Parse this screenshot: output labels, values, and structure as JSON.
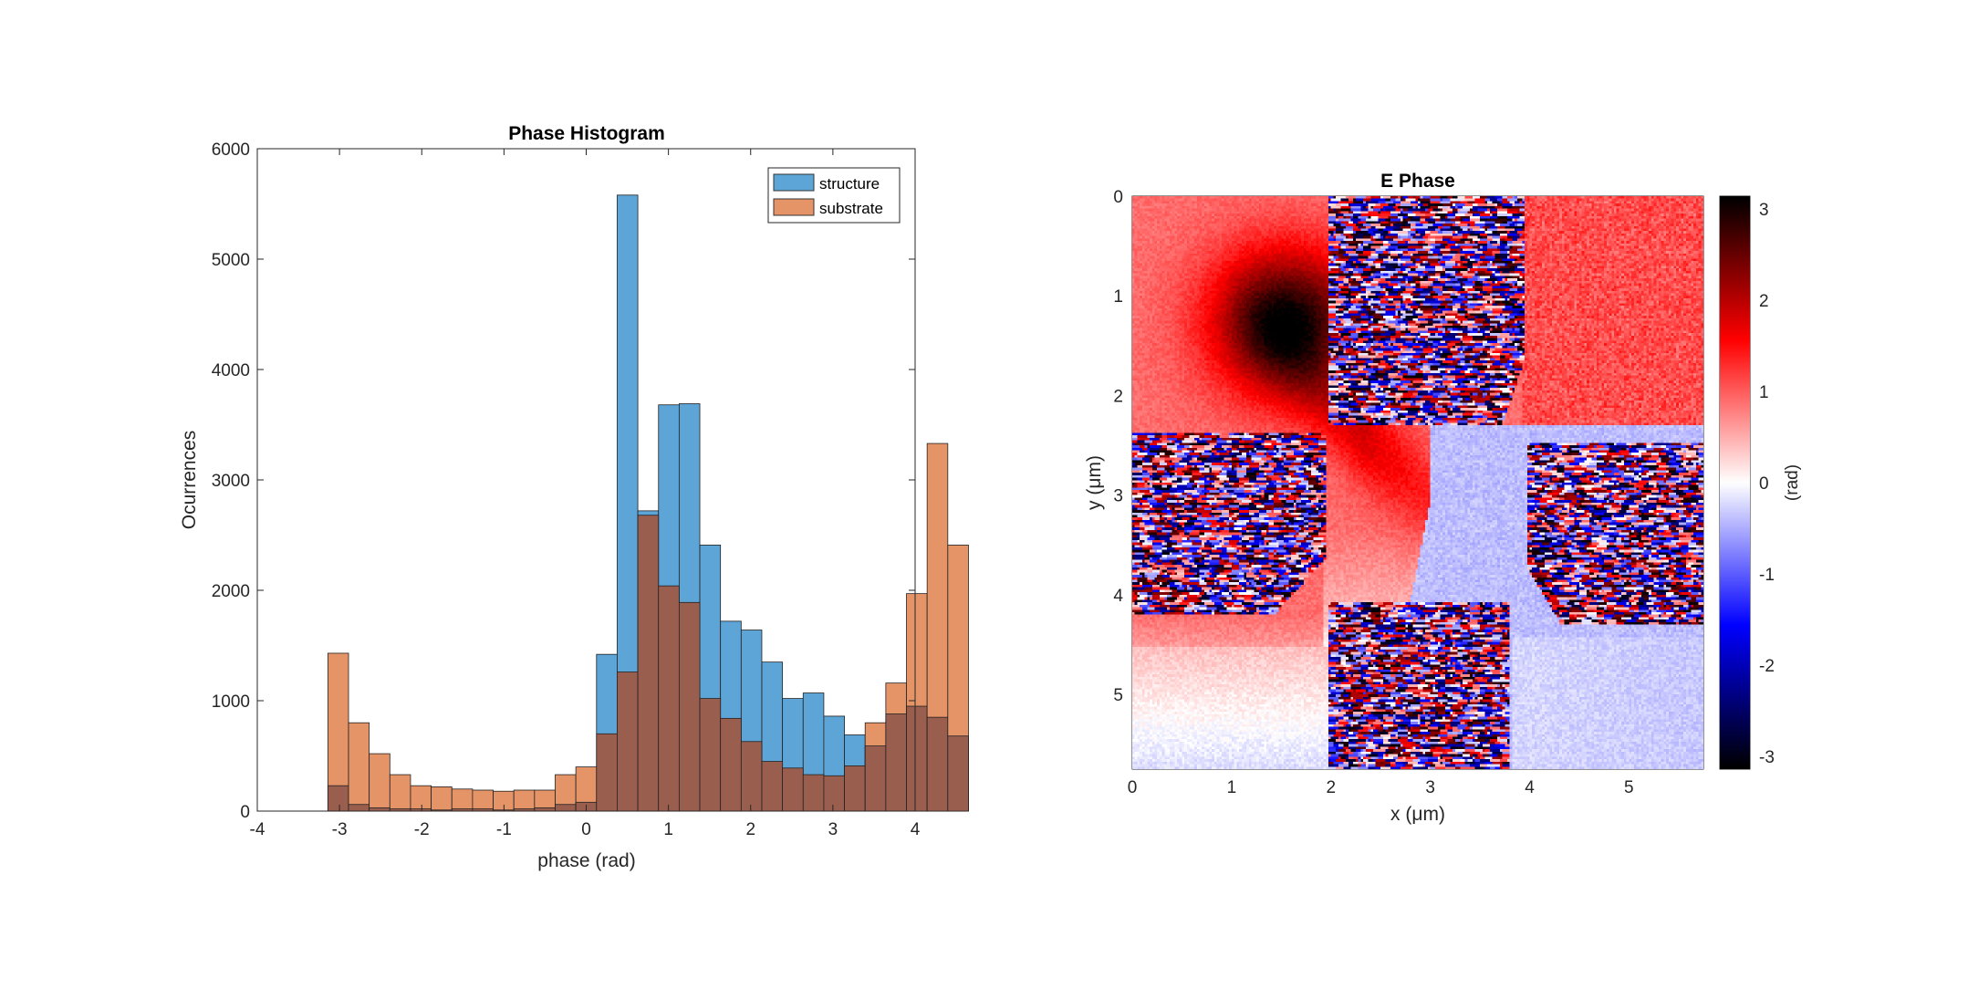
{
  "chart_data": [
    {
      "type": "bar",
      "subtype": "histogram",
      "title": "Phase Histogram",
      "xlabel": "phase (rad)",
      "ylabel": "Ocurrences",
      "xlim": [
        -4,
        4
      ],
      "ylim": [
        0,
        6000
      ],
      "xticks": [
        "-4",
        "-3",
        "-2",
        "-1",
        "0",
        "1",
        "2",
        "3",
        "4"
      ],
      "yticks": [
        "0",
        "1000",
        "2000",
        "3000",
        "4000",
        "5000",
        "6000"
      ],
      "grid": false,
      "legend_position": "top-right",
      "bin_start": -3.1416,
      "bin_width": 0.2513,
      "series": [
        {
          "name": "structure",
          "color": "#5da5d6",
          "values": [
            230,
            60,
            30,
            20,
            20,
            10,
            20,
            20,
            10,
            20,
            30,
            60,
            80,
            1420,
            5580,
            2720,
            3680,
            3690,
            2410,
            1720,
            1640,
            1350,
            1020,
            1070,
            860,
            690,
            590,
            880,
            950,
            850,
            680
          ]
        },
        {
          "name": "substrate",
          "color": "#e59468",
          "values": [
            1430,
            800,
            520,
            330,
            230,
            220,
            200,
            190,
            180,
            190,
            190,
            330,
            400,
            700,
            1260,
            2680,
            2040,
            1890,
            1020,
            840,
            630,
            450,
            390,
            330,
            320,
            410,
            800,
            1160,
            1970,
            3330,
            2410
          ]
        }
      ]
    },
    {
      "type": "heatmap",
      "title": "E Phase",
      "xlabel": "x (μm)",
      "ylabel": "y (μm)",
      "xlim": [
        0,
        5.75
      ],
      "ylim": [
        0,
        5.75
      ],
      "y_reversed": true,
      "xticks": [
        "0",
        "1",
        "2",
        "3",
        "4",
        "5"
      ],
      "yticks": [
        "0",
        "1",
        "2",
        "3",
        "4",
        "5"
      ],
      "colorbar": {
        "label": "(rad)",
        "range": [
          -3.1416,
          3.1416
        ],
        "ticks": [
          "3",
          "2",
          "1",
          "0",
          "-1",
          "-2",
          "-3"
        ],
        "colormap": [
          "#000000",
          "#0000ff",
          "#ffffff",
          "#ff0000",
          "#000000"
        ]
      },
      "regions": {
        "noisy": [
          "top band x 1.9–4.0, y 0–2.4",
          "left lobe x 0–2.0, y 2.3–4.2",
          "right lobe x 3.9–5.75, y 2.4–4.3",
          "bottom band x 1.9–3.8, y 4.0–5.75"
        ],
        "smooth_positive": [
          "upper-left red region peaking near x 1.5, y 1.2",
          "top-right red strip x 4.0–5.75, y 0–2.2"
        ],
        "smooth_negative": [
          "light blue region right of the neck, x 3.0–5.75, y 2.4–5.75"
        ]
      }
    }
  ]
}
